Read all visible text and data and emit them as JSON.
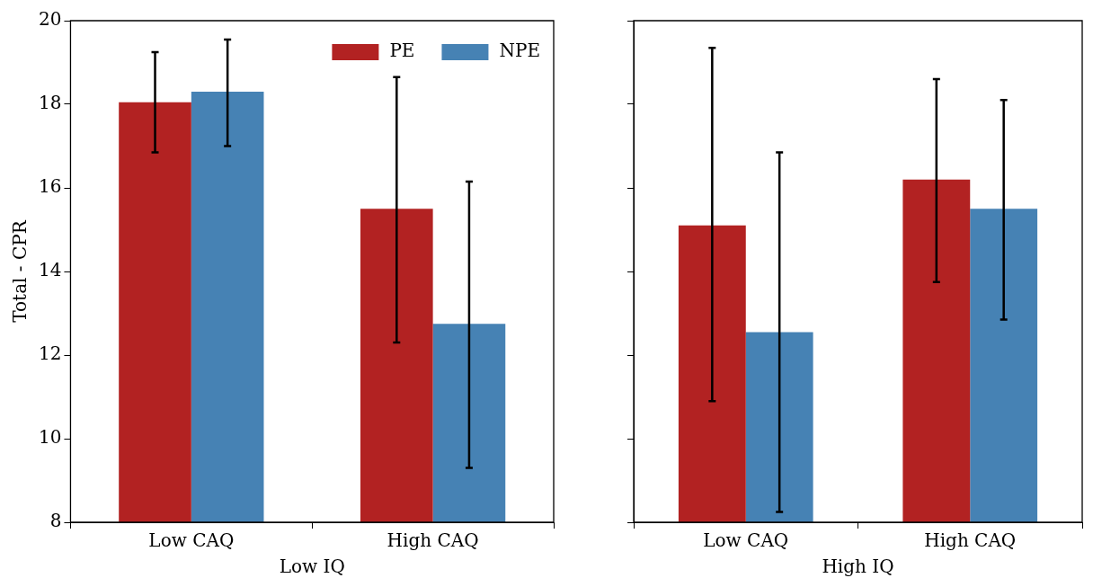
{
  "chart_data": [
    {
      "type": "bar",
      "categories": [
        "Low CAQ",
        "High CAQ"
      ],
      "xlabel": "Low IQ",
      "ylabel": "Total - CPR",
      "ylim": [
        8,
        20
      ],
      "yticks": [
        8,
        10,
        12,
        14,
        16,
        18,
        20
      ],
      "grid": false,
      "legend": "top right",
      "series": [
        {
          "name": "PE",
          "color": "#b22222",
          "values": [
            18.05,
            15.5
          ],
          "errors": [
            [
              16.85,
              19.25
            ],
            [
              12.3,
              18.65
            ]
          ]
        },
        {
          "name": "NPE",
          "color": "#4682b4",
          "values": [
            18.3,
            12.75
          ],
          "errors": [
            [
              17.0,
              19.55
            ],
            [
              9.3,
              16.15
            ]
          ]
        }
      ]
    },
    {
      "type": "bar",
      "categories": [
        "Low CAQ",
        "High CAQ"
      ],
      "xlabel": "High IQ",
      "ylim": [
        8,
        20
      ],
      "yticks": [
        8,
        10,
        12,
        14,
        16,
        18,
        20
      ],
      "grid": false,
      "tick_labels": "x",
      "series": [
        {
          "color": "#b22222",
          "values": [
            15.1,
            16.2
          ],
          "errors": [
            [
              10.9,
              19.35
            ],
            [
              13.75,
              18.6
            ]
          ]
        },
        {
          "color": "#4682b4",
          "values": [
            12.55,
            15.5
          ],
          "errors": [
            [
              8.25,
              16.85
            ],
            [
              12.85,
              18.1
            ]
          ]
        }
      ]
    }
  ]
}
